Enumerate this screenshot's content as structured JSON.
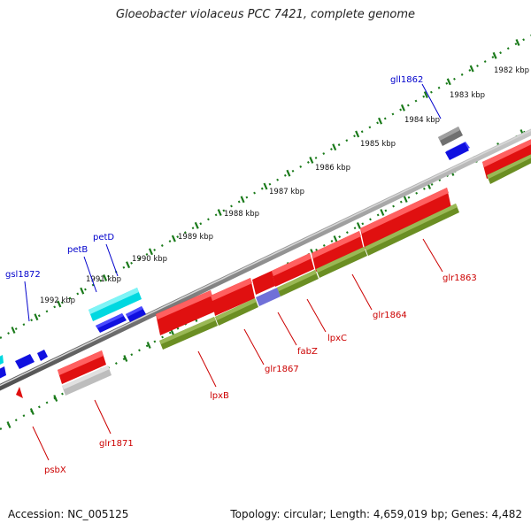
{
  "title": "Gloeobacter violaceus PCC 7421, complete genome",
  "footer": {
    "accession": "Accession: NC_005125",
    "summary": "Topology: circular; Length: 4,659,019 bp; Genes: 4,482"
  },
  "ruler": [
    "1982 kbp",
    "1983 kbp",
    "1984 kbp",
    "1985 kbp",
    "1986 kbp",
    "1987 kbp",
    "1988 kbp",
    "1989 kbp",
    "1990 kbp",
    "1991 kbp",
    "1992 kbp"
  ],
  "colors": {
    "forward_gene": "#e01010",
    "reverse_gene": "#1010e0",
    "cds": "#6b8e23",
    "rna": "#00d8e0",
    "pseudo": "#707070",
    "forward_label": "#cc0000",
    "reverse_label": "#0000cc",
    "axis": "#808080",
    "ticks": "#1a7a1a"
  },
  "genes": {
    "gll1862": "gll1862",
    "glr1863": "glr1863",
    "glr1864": "glr1864",
    "lpxC": "lpxC",
    "fabZ": "fabZ",
    "glr1867": "glr1867",
    "lpxB": "lpxB",
    "petD": "petD",
    "petB": "petB",
    "gsl1872": "gsl1872",
    "glr1871": "glr1871",
    "psbX": "psbX"
  }
}
